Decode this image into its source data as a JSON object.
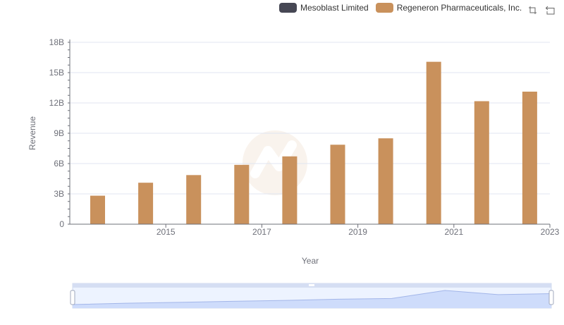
{
  "legend": [
    {
      "label": "Mesoblast Limited",
      "color": "#464754"
    },
    {
      "label": "Regeneron Pharmaceuticals, Inc.",
      "color": "#c9915c"
    }
  ],
  "toolbox": {
    "zoom_icon": "zoom-icon",
    "restore_icon": "restore-icon"
  },
  "chart_data": {
    "type": "bar",
    "xlabel": "Year",
    "ylabel": "Revenue",
    "ylim": [
      0,
      18000000000
    ],
    "y_ticks": [
      {
        "value": 0,
        "label": "0"
      },
      {
        "value": 3000000000,
        "label": "3B"
      },
      {
        "value": 6000000000,
        "label": "6B"
      },
      {
        "value": 9000000000,
        "label": "9B"
      },
      {
        "value": 12000000000,
        "label": "12B"
      },
      {
        "value": 15000000000,
        "label": "15B"
      },
      {
        "value": 18000000000,
        "label": "18B"
      }
    ],
    "categories": [
      "2014",
      "2015",
      "2016",
      "2017",
      "2018",
      "2019",
      "2020",
      "2021",
      "2022",
      "2023"
    ],
    "x_tick_labels": [
      "",
      "2015",
      "",
      "2017",
      "",
      "2019",
      "",
      "2021",
      "",
      "2023"
    ],
    "series": [
      {
        "name": "Mesoblast Limited",
        "color": "#464754",
        "values": [
          1.6e-05,
          1.7e-05,
          4.9e-05,
          6.6e-06,
          1.8e-05,
          1.6e-05,
          3.2e-05,
          7.4e-06,
          1.01e-05,
          7.6e-06
        ]
      },
      {
        "name": "Regeneron Pharmaceuticals, Inc.",
        "color": "#c9915c",
        "values": [
          2819557000,
          4103728000,
          4860427000,
          5872227000,
          6710800000,
          7863400000,
          8497100000,
          16071700000,
          12172900000,
          13117200000
        ]
      }
    ]
  },
  "data_zoom": {
    "range_start_percent": 0,
    "range_end_percent": 100
  }
}
